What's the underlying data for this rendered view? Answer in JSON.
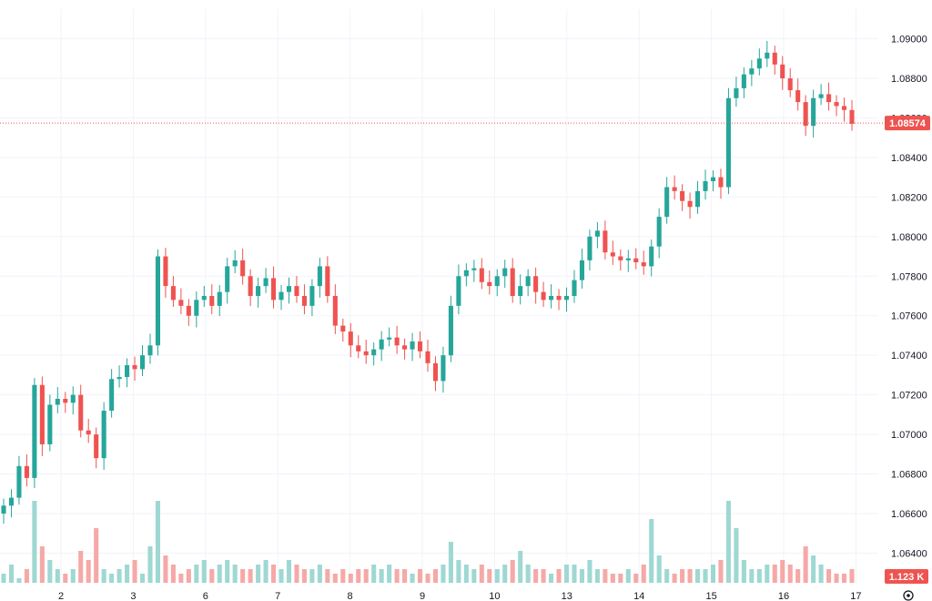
{
  "chart_data": {
    "type": "candlestick",
    "title": "",
    "y_axis_ticks": [
      "1.09000",
      "1.08800",
      "1.08600",
      "1.08400",
      "1.08200",
      "1.08000",
      "1.07800",
      "1.07600",
      "1.07400",
      "1.07200",
      "1.07000",
      "1.06800",
      "1.06600",
      "1.06400"
    ],
    "ylim": [
      1.0625,
      1.0915
    ],
    "x_axis_ticks": [
      "2",
      "3",
      "6",
      "7",
      "8",
      "9",
      "10",
      "13",
      "14",
      "15",
      "16",
      "17"
    ],
    "grid": true,
    "last_price": "1.08574",
    "last_price_value": 1.08574,
    "volume_label": "1.123 K",
    "colors": {
      "up": "#26a69a",
      "down": "#ef5350",
      "grid": "#f0f3fa",
      "axis_text": "#131722",
      "price_line": "#ef5350"
    },
    "close_series": [
      1.0664,
      1.0668,
      1.0684,
      1.0678,
      1.0725,
      1.0695,
      1.0715,
      1.0718,
      1.0716,
      1.072,
      1.0702,
      1.07,
      1.0688,
      1.0712,
      1.0728,
      1.0729,
      1.0735,
      1.0733,
      1.074,
      1.0745,
      1.079,
      1.0775,
      1.0768,
      1.0765,
      1.076,
      1.0768,
      1.077,
      1.0765,
      1.0772,
      1.0785,
      1.0788,
      1.078,
      1.077,
      1.0775,
      1.0779,
      1.0768,
      1.0772,
      1.0775,
      1.077,
      1.0765,
      1.0775,
      1.0785,
      1.077,
      1.0755,
      1.0752,
      1.0745,
      1.0742,
      1.074,
      1.0743,
      1.0748,
      1.0749,
      1.0745,
      1.0743,
      1.0747,
      1.0742,
      1.0736,
      1.0727,
      1.074,
      1.0765,
      1.078,
      1.0783,
      1.0784,
      1.0777,
      1.0775,
      1.078,
      1.0784,
      1.077,
      1.0775,
      1.078,
      1.0772,
      1.0768,
      1.077,
      1.0768,
      1.077,
      1.0778,
      1.0788,
      1.08,
      1.0803,
      1.0792,
      1.079,
      1.0788,
      1.0789,
      1.0787,
      1.0785,
      1.0795,
      1.081,
      1.0825,
      1.0823,
      1.0818,
      1.0815,
      1.0823,
      1.0828,
      1.083,
      1.0825,
      1.087,
      1.0875,
      1.0882,
      1.0885,
      1.089,
      1.0893,
      1.0887,
      1.088,
      1.0874,
      1.0868,
      1.0856,
      1.087,
      1.0872,
      1.0868,
      1.0866,
      1.0864,
      1.0857
    ],
    "volume_series": [
      2,
      4,
      1,
      3,
      18,
      8,
      5,
      3,
      2,
      3,
      7,
      5,
      12,
      3,
      2,
      3,
      4,
      5,
      2,
      8,
      18,
      6,
      4,
      2,
      3,
      4,
      5,
      3,
      4,
      5,
      4,
      3,
      3,
      4,
      5,
      4,
      3,
      5,
      4,
      3,
      3,
      4,
      3,
      2,
      3,
      2,
      3,
      3,
      4,
      3,
      4,
      3,
      3,
      2,
      3,
      2,
      3,
      4,
      9,
      5,
      4,
      3,
      4,
      3,
      3,
      4,
      5,
      7,
      4,
      3,
      3,
      2,
      3,
      4,
      4,
      3,
      5,
      3,
      3,
      2,
      2,
      3,
      2,
      4,
      14,
      6,
      3,
      2,
      3,
      3,
      3,
      3,
      4,
      5,
      18,
      12,
      5,
      3,
      3,
      4,
      4,
      5,
      4,
      3,
      8,
      6,
      4,
      3,
      2,
      2,
      3
    ]
  }
}
